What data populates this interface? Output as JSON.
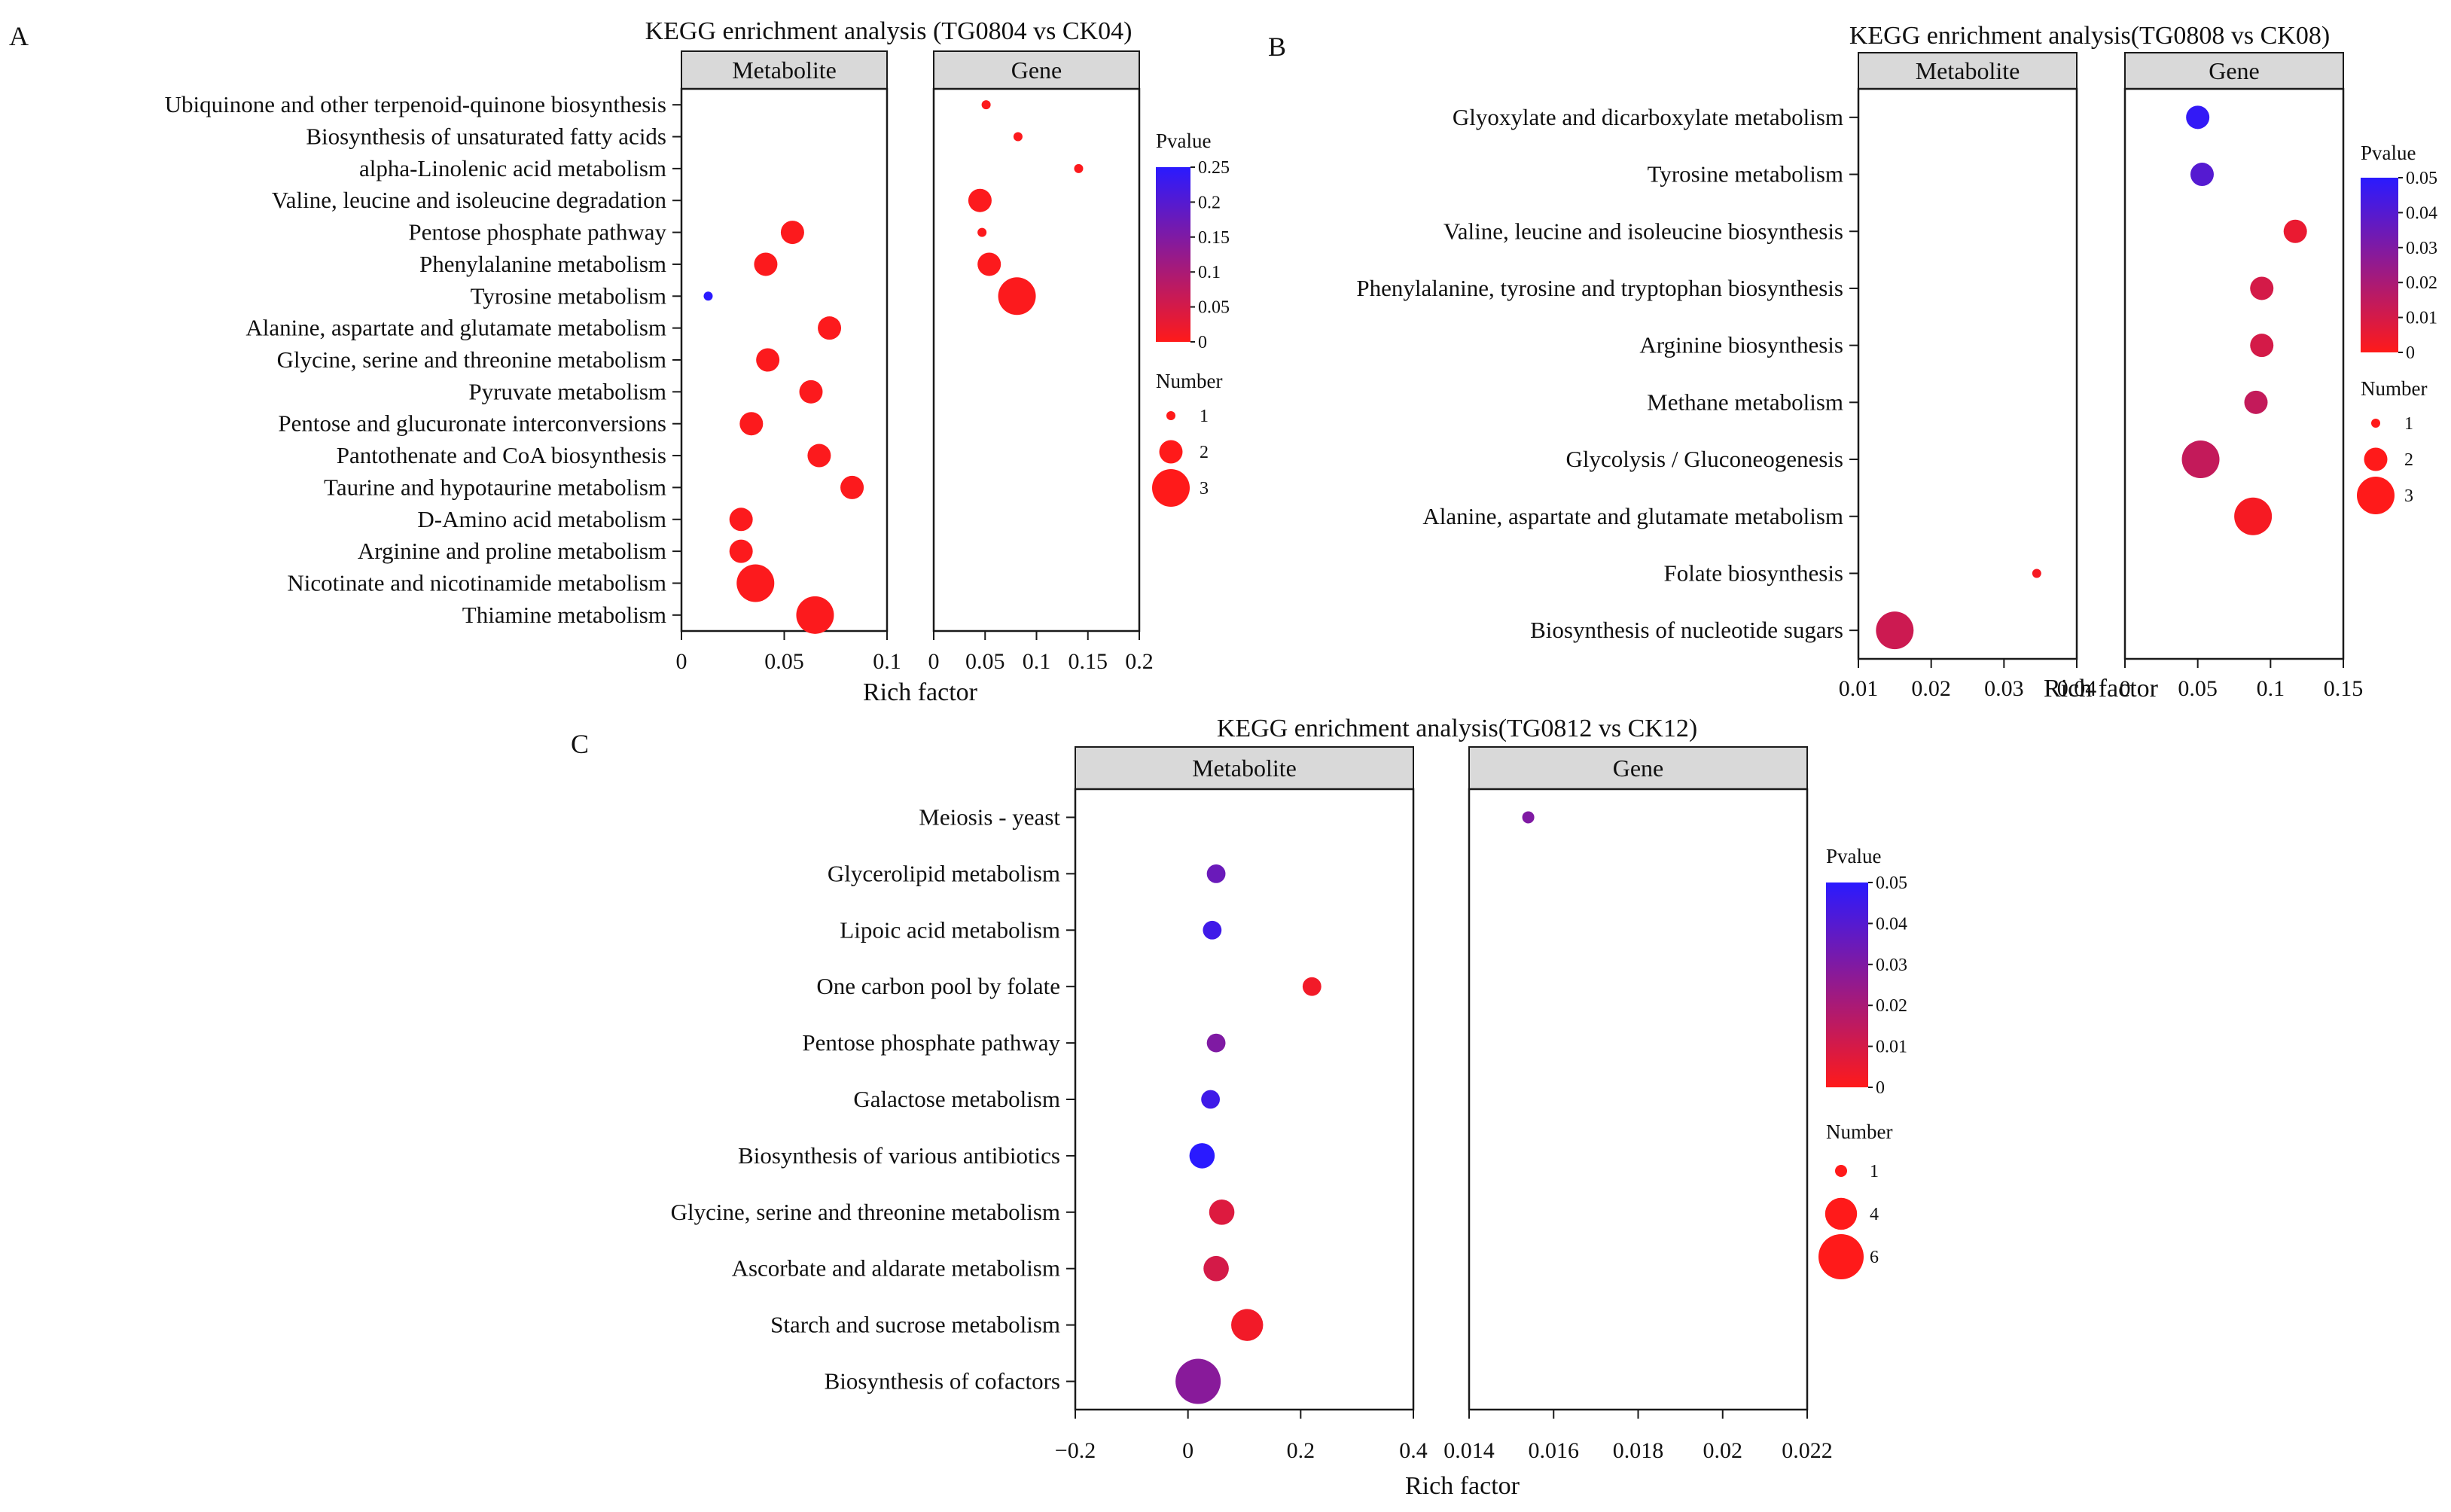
{
  "colors": {
    "pvalue_low": "#ff1a1a",
    "pvalue_high": "#2a1aff",
    "strip_fill": "#d9d9d9"
  },
  "legend_labels": {
    "pvalue": "Pvalue",
    "number": "Number"
  },
  "chart_data": [
    {
      "id": "A",
      "type": "scatter",
      "panel_letter": "A",
      "title": "KEGG enrichment analysis (TG0804 vs CK04)",
      "xlabel": "Rich factor",
      "categories": [
        "Ubiquinone and other terpenoid-quinone biosynthesis",
        "Biosynthesis of unsaturated fatty acids",
        "alpha-Linolenic acid metabolism",
        "Valine, leucine and isoleucine degradation",
        "Pentose phosphate pathway",
        "Phenylalanine metabolism",
        "Tyrosine metabolism",
        "Alanine, aspartate and glutamate metabolism",
        "Glycine, serine and threonine metabolism",
        "Pyruvate metabolism",
        "Pentose and glucuronate interconversions",
        "Pantothenate and CoA biosynthesis",
        "Taurine and hypotaurine metabolism",
        "D-Amino acid metabolism",
        "Arginine and proline metabolism",
        "Nicotinate and nicotinamide metabolism",
        "Thiamine metabolism"
      ],
      "facets": [
        {
          "name": "Metabolite",
          "xlim": [
            0,
            0.1
          ],
          "ticks": [
            0,
            0.05,
            0.1
          ],
          "tick_labels": [
            "0",
            "0.05",
            "0.1"
          ],
          "points": [
            {
              "category": "Pentose phosphate pathway",
              "x": 0.054,
              "number": 2,
              "p": 0.003
            },
            {
              "category": "Phenylalanine metabolism",
              "x": 0.041,
              "number": 2,
              "p": 0.003
            },
            {
              "category": "Tyrosine metabolism",
              "x": 0.013,
              "number": 1,
              "p": 0.25
            },
            {
              "category": "Alanine, aspartate and glutamate metabolism",
              "x": 0.072,
              "number": 2,
              "p": 0.003
            },
            {
              "category": "Glycine, serine and threonine metabolism",
              "x": 0.042,
              "number": 2,
              "p": 0.003
            },
            {
              "category": "Pyruvate metabolism",
              "x": 0.063,
              "number": 2,
              "p": 0.003
            },
            {
              "category": "Pentose and glucuronate interconversions",
              "x": 0.034,
              "number": 2,
              "p": 0.003
            },
            {
              "category": "Pantothenate and CoA biosynthesis",
              "x": 0.067,
              "number": 2,
              "p": 0.003
            },
            {
              "category": "Taurine and hypotaurine metabolism",
              "x": 0.083,
              "number": 2,
              "p": 0.003
            },
            {
              "category": "D-Amino acid metabolism",
              "x": 0.029,
              "number": 2,
              "p": 0.003
            },
            {
              "category": "Arginine and proline metabolism",
              "x": 0.029,
              "number": 2,
              "p": 0.003
            },
            {
              "category": "Nicotinate and nicotinamide metabolism",
              "x": 0.036,
              "number": 3,
              "p": 0.003
            },
            {
              "category": "Thiamine metabolism",
              "x": 0.065,
              "number": 3,
              "p": 0.003
            }
          ]
        },
        {
          "name": "Gene",
          "xlim": [
            0,
            0.2
          ],
          "ticks": [
            0,
            0.05,
            0.1,
            0.15,
            0.2
          ],
          "tick_labels": [
            "0",
            "0.05",
            "0.1",
            "0.15",
            "0.2"
          ],
          "points": [
            {
              "category": "Ubiquinone and other terpenoid-quinone biosynthesis",
              "x": 0.051,
              "number": 1,
              "p": 0.003
            },
            {
              "category": "Biosynthesis of unsaturated fatty acids",
              "x": 0.082,
              "number": 1,
              "p": 0.003
            },
            {
              "category": "alpha-Linolenic acid metabolism",
              "x": 0.141,
              "number": 1,
              "p": 0.003
            },
            {
              "category": "Valine, leucine and isoleucine degradation",
              "x": 0.045,
              "number": 2,
              "p": 0.003
            },
            {
              "category": "Pentose phosphate pathway",
              "x": 0.047,
              "number": 1,
              "p": 0.003
            },
            {
              "category": "Phenylalanine metabolism",
              "x": 0.054,
              "number": 2,
              "p": 0.003
            },
            {
              "category": "Tyrosine metabolism",
              "x": 0.081,
              "number": 3,
              "p": 0.003
            }
          ]
        }
      ],
      "pvalue_legend": {
        "range": [
          0,
          0.25
        ],
        "ticks": [
          0,
          0.05,
          0.1,
          0.15,
          0.2,
          0.25
        ],
        "tick_labels": [
          "0",
          "0.05",
          "0.1",
          "0.15",
          "0.2",
          "0.25"
        ]
      },
      "number_legend": {
        "values": [
          1,
          2,
          3
        ],
        "labels": [
          "1",
          "2",
          "3"
        ]
      }
    },
    {
      "id": "B",
      "type": "scatter",
      "panel_letter": "B",
      "title": "KEGG enrichment analysis(TG0808 vs CK08)",
      "xlabel": "Rich factor",
      "categories": [
        "Glyoxylate and dicarboxylate metabolism",
        "Tyrosine metabolism",
        "Valine, leucine and isoleucine biosynthesis",
        "Phenylalanine, tyrosine and tryptophan biosynthesis",
        "Arginine biosynthesis",
        "Methane metabolism",
        "Glycolysis / Gluconeogenesis",
        "Alanine, aspartate and glutamate metabolism",
        "Folate biosynthesis",
        "Biosynthesis of nucleotide sugars"
      ],
      "facets": [
        {
          "name": "Metabolite",
          "xlim": [
            0.01,
            0.04
          ],
          "ticks": [
            0.01,
            0.02,
            0.03,
            0.04
          ],
          "tick_labels": [
            "0.01",
            "0.02",
            "0.03",
            "0.04"
          ],
          "points": [
            {
              "category": "Folate biosynthesis",
              "x": 0.0345,
              "number": 1,
              "p": 0.002
            },
            {
              "category": "Biosynthesis of nucleotide sugars",
              "x": 0.015,
              "number": 3,
              "p": 0.012
            }
          ]
        },
        {
          "name": "Gene",
          "xlim": [
            0,
            0.15
          ],
          "ticks": [
            0,
            0.05,
            0.1,
            0.15
          ],
          "tick_labels": [
            "0",
            "0.05",
            "0.1",
            "0.15"
          ],
          "points": [
            {
              "category": "Glyoxylate and dicarboxylate metabolism",
              "x": 0.05,
              "number": 2,
              "p": 0.048
            },
            {
              "category": "Tyrosine metabolism",
              "x": 0.053,
              "number": 2,
              "p": 0.04
            },
            {
              "category": "Valine, leucine and isoleucine biosynthesis",
              "x": 0.117,
              "number": 2,
              "p": 0.005
            },
            {
              "category": "Phenylalanine, tyrosine and tryptophan biosynthesis",
              "x": 0.094,
              "number": 2,
              "p": 0.01
            },
            {
              "category": "Arginine biosynthesis",
              "x": 0.094,
              "number": 2,
              "p": 0.01
            },
            {
              "category": "Methane metabolism",
              "x": 0.09,
              "number": 2,
              "p": 0.014
            },
            {
              "category": "Glycolysis / Gluconeogenesis",
              "x": 0.052,
              "number": 3,
              "p": 0.014
            },
            {
              "category": "Alanine, aspartate and glutamate metabolism",
              "x": 0.088,
              "number": 3,
              "p": 0.002
            }
          ]
        }
      ],
      "pvalue_legend": {
        "range": [
          0,
          0.05
        ],
        "ticks": [
          0,
          0.01,
          0.02,
          0.03,
          0.04,
          0.05
        ],
        "tick_labels": [
          "0",
          "0.01",
          "0.02",
          "0.03",
          "0.04",
          "0.05"
        ]
      },
      "number_legend": {
        "values": [
          1,
          2,
          3
        ],
        "labels": [
          "1",
          "2",
          "3"
        ]
      }
    },
    {
      "id": "C",
      "type": "scatter",
      "panel_letter": "C",
      "title": "KEGG enrichment analysis(TG0812 vs CK12)",
      "xlabel": "Rich factor",
      "categories": [
        "Meiosis - yeast",
        "Glycerolipid metabolism",
        "Lipoic acid metabolism",
        "One carbon pool by folate",
        "Pentose phosphate pathway",
        "Galactose metabolism",
        "Biosynthesis of various antibiotics",
        "Glycine, serine and threonine metabolism",
        "Ascorbate and aldarate metabolism",
        "Starch and sucrose metabolism",
        "Biosynthesis of cofactors"
      ],
      "facets": [
        {
          "name": "Metabolite",
          "xlim": [
            -0.2,
            0.4
          ],
          "ticks": [
            -0.2,
            0,
            0.2,
            0.4
          ],
          "tick_labels": [
            "−0.2",
            "0",
            "0.2",
            "0.4"
          ],
          "points": [
            {
              "category": "Glycerolipid metabolism",
              "x": 0.05,
              "number": 2,
              "p": 0.035
            },
            {
              "category": "Lipoic acid metabolism",
              "x": 0.043,
              "number": 2,
              "p": 0.045
            },
            {
              "category": "One carbon pool by folate",
              "x": 0.22,
              "number": 2,
              "p": 0.003
            },
            {
              "category": "Pentose phosphate pathway",
              "x": 0.05,
              "number": 2,
              "p": 0.03
            },
            {
              "category": "Galactose metabolism",
              "x": 0.04,
              "number": 2,
              "p": 0.045
            },
            {
              "category": "Biosynthesis of various antibiotics",
              "x": 0.025,
              "number": 3,
              "p": 0.05
            },
            {
              "category": "Glycine, serine and threonine metabolism",
              "x": 0.06,
              "number": 3,
              "p": 0.008
            },
            {
              "category": "Ascorbate and aldarate metabolism",
              "x": 0.05,
              "number": 3,
              "p": 0.01
            },
            {
              "category": "Starch and sucrose metabolism",
              "x": 0.105,
              "number": 4,
              "p": 0.003
            },
            {
              "category": "Biosynthesis of cofactors",
              "x": 0.018,
              "number": 6,
              "p": 0.028
            }
          ]
        },
        {
          "name": "Gene",
          "xlim": [
            0.014,
            0.022
          ],
          "ticks": [
            0.014,
            0.016,
            0.018,
            0.02,
            0.022
          ],
          "tick_labels": [
            "0.014",
            "0.016",
            "0.018",
            "0.02",
            "0.022"
          ],
          "points": [
            {
              "category": "Meiosis - yeast",
              "x": 0.0154,
              "number": 1,
              "p": 0.03
            }
          ]
        }
      ],
      "pvalue_legend": {
        "range": [
          0,
          0.05
        ],
        "ticks": [
          0,
          0.01,
          0.02,
          0.03,
          0.04,
          0.05
        ],
        "tick_labels": [
          "0",
          "0.01",
          "0.02",
          "0.03",
          "0.04",
          "0.05"
        ]
      },
      "number_legend": {
        "values": [
          1,
          4,
          6
        ],
        "labels": [
          "1",
          "4",
          "6"
        ]
      }
    }
  ]
}
